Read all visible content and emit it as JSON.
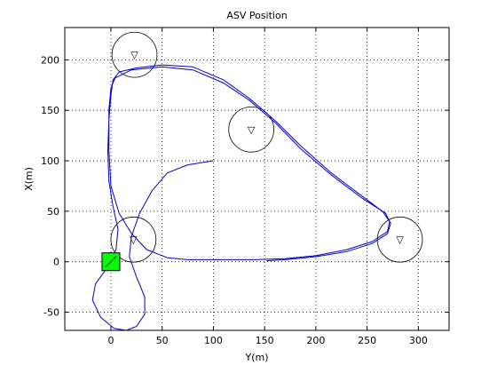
{
  "chart_data": {
    "type": "line",
    "title": "ASV Position",
    "xlabel": "Y(m)",
    "ylabel": "X(m)",
    "xlim": [
      -45,
      330
    ],
    "ylim": [
      -68,
      232
    ],
    "xticks": [
      0,
      50,
      100,
      150,
      200,
      250,
      300
    ],
    "yticks": [
      -50,
      0,
      50,
      100,
      150,
      200
    ],
    "grid": true,
    "series": [
      {
        "color": "#0000cc",
        "points": [
          [
            100,
            100
          ],
          [
            75,
            96
          ],
          [
            55,
            88
          ],
          [
            40,
            70
          ],
          [
            28,
            48
          ],
          [
            20,
            25
          ],
          [
            18,
            5
          ],
          [
            25,
            -15
          ],
          [
            33,
            -35
          ],
          [
            33,
            -52
          ],
          [
            25,
            -64
          ],
          [
            15,
            -68
          ],
          [
            3,
            -66
          ],
          [
            -10,
            -55
          ],
          [
            -18,
            -38
          ],
          [
            -15,
            -22
          ],
          [
            -3,
            -5
          ],
          [
            5,
            12
          ],
          [
            7,
            32
          ],
          [
            2,
            55
          ],
          [
            -2,
            80
          ],
          [
            -3,
            110
          ],
          [
            -2,
            140
          ],
          [
            0,
            165
          ],
          [
            2,
            180
          ],
          [
            8,
            188
          ],
          [
            25,
            192
          ],
          [
            50,
            195
          ],
          [
            80,
            193
          ],
          [
            110,
            180
          ],
          [
            135,
            162
          ],
          [
            160,
            140
          ],
          [
            185,
            115
          ],
          [
            215,
            88
          ],
          [
            245,
            65
          ],
          [
            265,
            50
          ],
          [
            272,
            40
          ],
          [
            270,
            30
          ],
          [
            255,
            20
          ],
          [
            230,
            12
          ],
          [
            200,
            6
          ],
          [
            170,
            3
          ],
          [
            140,
            2
          ],
          [
            100,
            2
          ],
          [
            75,
            2
          ],
          [
            55,
            4
          ],
          [
            35,
            12
          ],
          [
            20,
            28
          ],
          [
            8,
            48
          ],
          [
            0,
            75
          ],
          [
            -2,
            110
          ],
          [
            -2,
            150
          ],
          [
            0,
            172
          ],
          [
            4,
            182
          ],
          [
            20,
            190
          ],
          [
            50,
            193
          ],
          [
            80,
            190
          ],
          [
            110,
            177
          ],
          [
            135,
            160
          ],
          [
            160,
            138
          ],
          [
            185,
            112
          ],
          [
            215,
            86
          ],
          [
            245,
            63
          ],
          [
            268,
            48
          ],
          [
            273,
            38
          ],
          [
            270,
            28
          ],
          [
            255,
            18
          ],
          [
            230,
            10
          ],
          [
            200,
            5
          ],
          [
            170,
            2
          ],
          [
            152,
            1
          ]
        ]
      }
    ],
    "waypoints": [
      {
        "y": 23,
        "x": 205,
        "radius": 22,
        "marker": "▽"
      },
      {
        "y": 137,
        "x": 131,
        "radius": 22,
        "marker": "▽"
      },
      {
        "y": 22,
        "x": 22,
        "radius": 22,
        "marker": "▽"
      },
      {
        "y": 282,
        "x": 22,
        "radius": 22,
        "marker": "▽"
      }
    ],
    "vessel": {
      "y": 0,
      "x": 0,
      "fill": "#00ff00",
      "stroke": "#000000"
    }
  }
}
